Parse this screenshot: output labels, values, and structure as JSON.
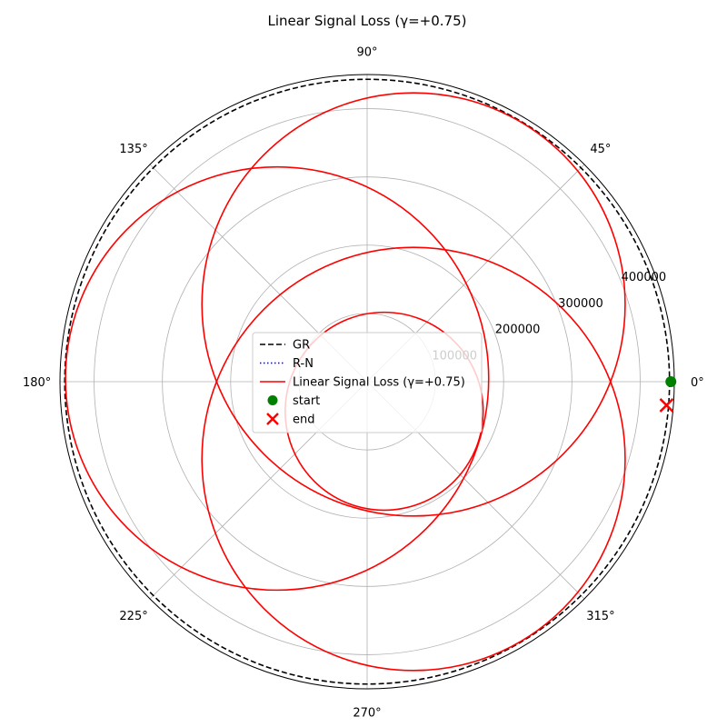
{
  "chart_data": {
    "type": "polar-line",
    "title": "Linear Signal Loss (γ=+0.75)",
    "theta_unit": "degrees",
    "theta_ticks": [
      "0°",
      "45°",
      "90°",
      "135°",
      "180°",
      "225°",
      "270°",
      "315°"
    ],
    "theta_tick_values": [
      0,
      45,
      90,
      135,
      180,
      225,
      270,
      315
    ],
    "r_ticks": [
      "100000",
      "200000",
      "300000",
      "400000"
    ],
    "r_tick_values": [
      100000,
      200000,
      300000,
      400000
    ],
    "rlim": [
      0,
      450000
    ],
    "grid": true,
    "legend_position": "center",
    "series": [
      {
        "name": "GR",
        "style": "dashed",
        "color": "#000000",
        "shape": "circle",
        "r": 443000
      },
      {
        "name": "R-N",
        "style": "dotted",
        "color": "#0000ff",
        "visible_trace": false
      },
      {
        "name": "Linear Signal Loss (γ=+0.75)",
        "style": "solid",
        "color": "#ff0000",
        "shape": "precessing-loop",
        "loops": [
          {
            "center_r": 132000,
            "center_theta_deg": -59,
            "radius": 310000
          },
          {
            "center_r": 132000,
            "center_theta_deg": 178,
            "radius": 310000
          },
          {
            "center_r": 132000,
            "center_theta_deg": 59,
            "radius": 310000
          },
          {
            "center_r": 50000,
            "center_theta_deg": 300,
            "radius": 145000
          }
        ]
      },
      {
        "name": "start",
        "marker": "circle",
        "color": "#008000",
        "r": 445000,
        "theta_deg": 0
      },
      {
        "name": "end",
        "marker": "x",
        "color": "#ff0000",
        "r": 440000,
        "theta_deg": -4.5
      }
    ]
  }
}
